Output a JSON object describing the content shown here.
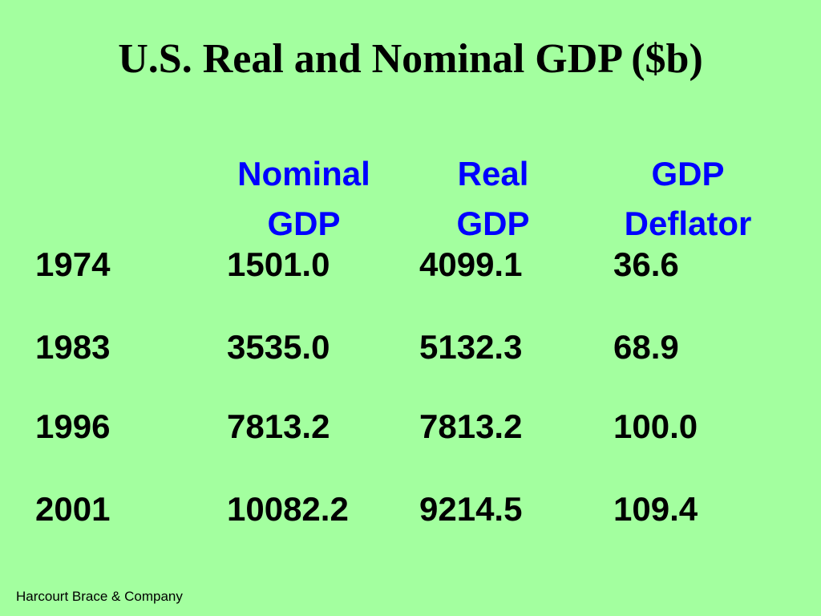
{
  "title": "U.S. Real and Nominal GDP ($b)",
  "table": {
    "headers": [
      {
        "line1": "Nominal",
        "line2": "GDP"
      },
      {
        "line1": "Real",
        "line2": "GDP"
      },
      {
        "line1": "GDP",
        "line2": "Deflator"
      }
    ],
    "rows": [
      {
        "year": "1974",
        "nominal": "1501.0",
        "real": "4099.1",
        "deflator": "36.6"
      },
      {
        "year": "1983",
        "nominal": "3535.0",
        "real": "5132.3",
        "deflator": "68.9"
      },
      {
        "year": "1996",
        "nominal": "7813.2",
        "real": "7813.2",
        "deflator": "100.0"
      },
      {
        "year": "2001",
        "nominal": "10082.2",
        "real": "9214.5",
        "deflator": "109.4"
      }
    ]
  },
  "footer": "Harcourt Brace & Company",
  "colors": {
    "background": "#a3ff9f",
    "header_text": "#0000ff",
    "body_text": "#000000"
  }
}
